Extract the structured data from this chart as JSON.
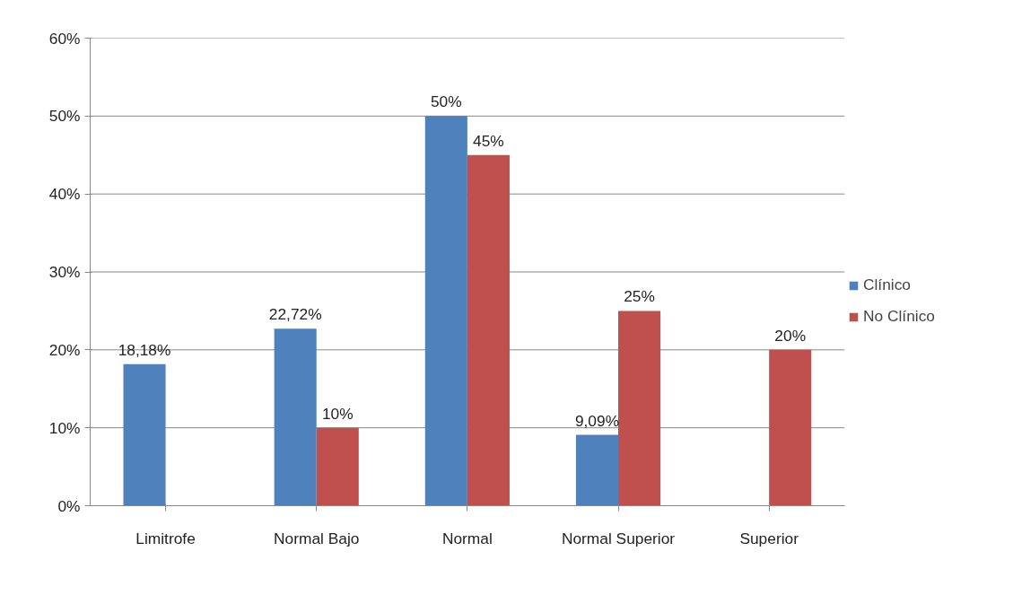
{
  "chart_data": {
    "type": "bar",
    "categories": [
      "Limitrofe",
      "Normal Bajo",
      "Normal",
      "Normal Superior",
      "Superior"
    ],
    "series": [
      {
        "name": "Clínico",
        "color": "#4f81bd",
        "values": [
          18.18,
          22.72,
          50,
          9.09,
          null
        ],
        "value_labels": [
          "18,18%",
          "22,72%",
          "50%",
          "9,09%",
          null
        ]
      },
      {
        "name": "No Clínico",
        "color": "#c0504d",
        "values": [
          null,
          10,
          45,
          25,
          20
        ],
        "value_labels": [
          null,
          "10%",
          "45%",
          "25%",
          "20%"
        ]
      }
    ],
    "ylim": [
      0,
      60
    ],
    "yticks": [
      {
        "value": 0,
        "label": "0%"
      },
      {
        "value": 10,
        "label": "10%"
      },
      {
        "value": 20,
        "label": "20%"
      },
      {
        "value": 30,
        "label": "30%"
      },
      {
        "value": 40,
        "label": "40%"
      },
      {
        "value": 50,
        "label": "50%"
      },
      {
        "value": 60,
        "label": "60%"
      }
    ],
    "grid": "y",
    "legend": "right"
  }
}
